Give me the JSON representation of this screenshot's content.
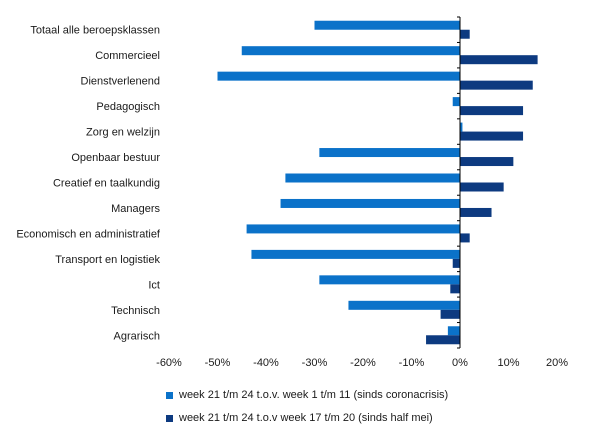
{
  "chart_data": {
    "type": "bar",
    "orientation": "horizontal",
    "categories": [
      "Totaal alle beroepsklassen",
      "Commercieel",
      "Dienstverlenend",
      "Pedagogisch",
      "Zorg en welzijn",
      "Openbaar bestuur",
      "Creatief en taalkundig",
      "Managers",
      "Economisch en administratief",
      "Transport en logistiek",
      "Ict",
      "Technisch",
      "Agrarisch"
    ],
    "series": [
      {
        "name": "week 21 t/m 24 t.o.v. week 1 t/m 11 (sinds coronacrisis)",
        "color": "#0b72c9",
        "values": [
          -30,
          -45,
          -50,
          -1.5,
          0.5,
          -29,
          -36,
          -37,
          -44,
          -43,
          -29,
          -23,
          -2.5
        ]
      },
      {
        "name": "week 21 t/m 24 t.o.v week 17 t/m 20 (sinds half mei)",
        "color": "#0d3a80",
        "values": [
          2,
          16,
          15,
          13,
          13,
          11,
          9,
          6.5,
          2,
          -1.5,
          -2,
          -4,
          -7
        ]
      }
    ],
    "xlim": [
      -60,
      20
    ],
    "xticks": [
      -60,
      -50,
      -40,
      -30,
      -20,
      -10,
      0,
      10,
      20
    ],
    "tick_suffix": "%",
    "grid": false,
    "legend_position": "bottom"
  }
}
